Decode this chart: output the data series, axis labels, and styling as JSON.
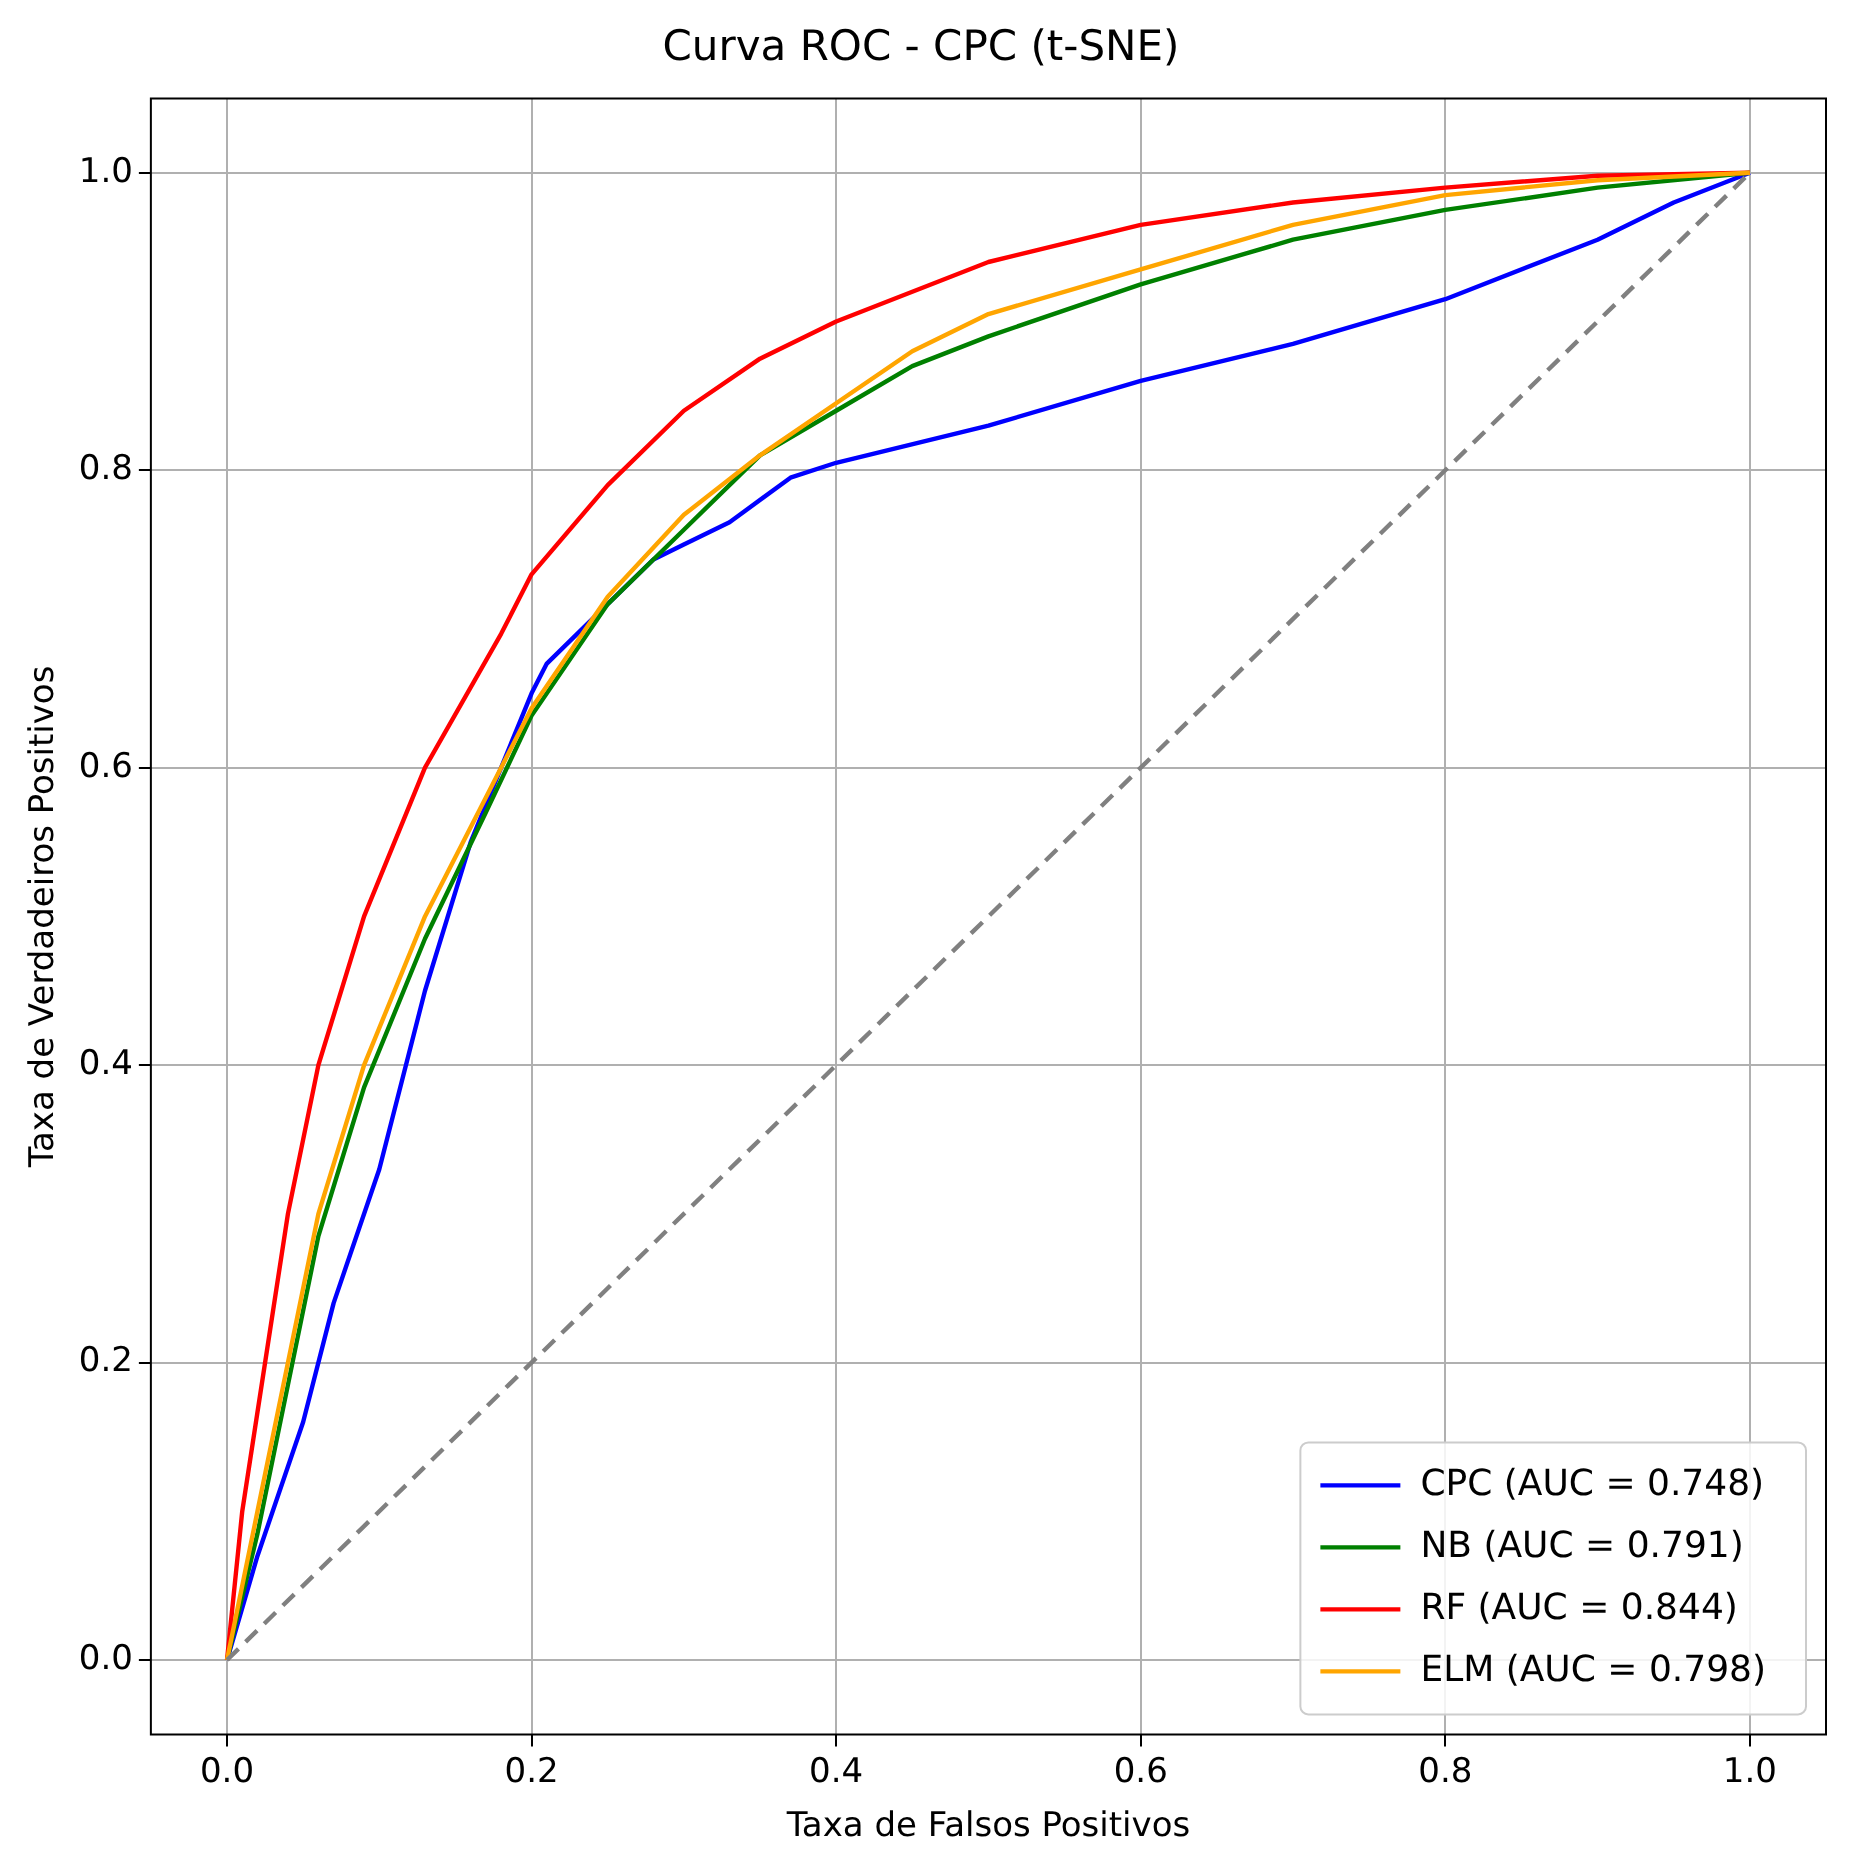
{
  "chart_data": {
    "type": "line",
    "title": "Curva ROC - CPC (t-SNE)",
    "xlabel": "Taxa de Falsos Positivos",
    "ylabel": "Taxa de Verdadeiros Positivos",
    "xlim": [
      -0.05,
      1.05
    ],
    "ylim": [
      -0.05,
      1.05
    ],
    "xticks": [
      {
        "value": 0,
        "label": "0.0"
      },
      {
        "value": 0.2,
        "label": "0.2"
      },
      {
        "value": 0.4,
        "label": "0.4"
      },
      {
        "value": 0.6,
        "label": "0.6"
      },
      {
        "value": 0.8,
        "label": "0.8"
      },
      {
        "value": 1,
        "label": "1.0"
      }
    ],
    "yticks": [
      {
        "value": 0,
        "label": "0.0"
      },
      {
        "value": 0.2,
        "label": "0.2"
      },
      {
        "value": 0.4,
        "label": "0.4"
      },
      {
        "value": 0.6,
        "label": "0.6"
      },
      {
        "value": 0.8,
        "label": "0.8"
      },
      {
        "value": 1,
        "label": "1.0"
      }
    ],
    "grid": true,
    "legend": "bottom right",
    "marker": "none",
    "line_style": "solid",
    "series": [
      {
        "name": "CPC (AUC = 0.748)",
        "color": "#0000ff",
        "x": [
          0,
          0.02,
          0.05,
          0.07,
          0.1,
          0.13,
          0.16,
          0.18,
          0.2,
          0.21,
          0.24,
          0.28,
          0.3,
          0.33,
          0.37,
          0.4,
          0.5,
          0.6,
          0.7,
          0.8,
          0.9,
          0.95,
          1
        ],
        "values": [
          0,
          0.07,
          0.16,
          0.24,
          0.33,
          0.45,
          0.55,
          0.6,
          0.65,
          0.67,
          0.7,
          0.74,
          0.75,
          0.765,
          0.795,
          0.805,
          0.83,
          0.86,
          0.885,
          0.915,
          0.955,
          0.98,
          1
        ]
      },
      {
        "name": "NB (AUC = 0.791)",
        "color": "#008000",
        "x": [
          0,
          0.02,
          0.04,
          0.06,
          0.09,
          0.13,
          0.17,
          0.2,
          0.25,
          0.3,
          0.35,
          0.4,
          0.45,
          0.5,
          0.6,
          0.7,
          0.8,
          0.9,
          1
        ],
        "values": [
          0,
          0.085,
          0.185,
          0.285,
          0.385,
          0.485,
          0.57,
          0.635,
          0.71,
          0.76,
          0.81,
          0.84,
          0.87,
          0.89,
          0.925,
          0.955,
          0.975,
          0.99,
          1
        ]
      },
      {
        "name": "RF (AUC = 0.844)",
        "color": "#ff0000",
        "x": [
          0,
          0.01,
          0.025,
          0.04,
          0.06,
          0.09,
          0.13,
          0.18,
          0.2,
          0.25,
          0.3,
          0.35,
          0.4,
          0.5,
          0.6,
          0.7,
          0.8,
          0.9,
          1
        ],
        "values": [
          0,
          0.1,
          0.2,
          0.3,
          0.4,
          0.5,
          0.6,
          0.69,
          0.73,
          0.79,
          0.84,
          0.875,
          0.9,
          0.94,
          0.965,
          0.98,
          0.99,
          0.998,
          1
        ]
      },
      {
        "name": "ELM (AUC = 0.798)",
        "color": "#ffa500",
        "x": [
          0,
          0.02,
          0.04,
          0.06,
          0.09,
          0.13,
          0.17,
          0.2,
          0.25,
          0.3,
          0.35,
          0.4,
          0.45,
          0.5,
          0.6,
          0.7,
          0.8,
          0.9,
          1
        ],
        "values": [
          0,
          0.1,
          0.2,
          0.3,
          0.4,
          0.5,
          0.58,
          0.64,
          0.715,
          0.77,
          0.81,
          0.845,
          0.88,
          0.905,
          0.935,
          0.965,
          0.985,
          0.995,
          1
        ]
      },
      {
        "color": "#808080",
        "line_style": "dashed",
        "x": [
          0,
          1
        ],
        "values": [
          0,
          1
        ]
      }
    ]
  }
}
